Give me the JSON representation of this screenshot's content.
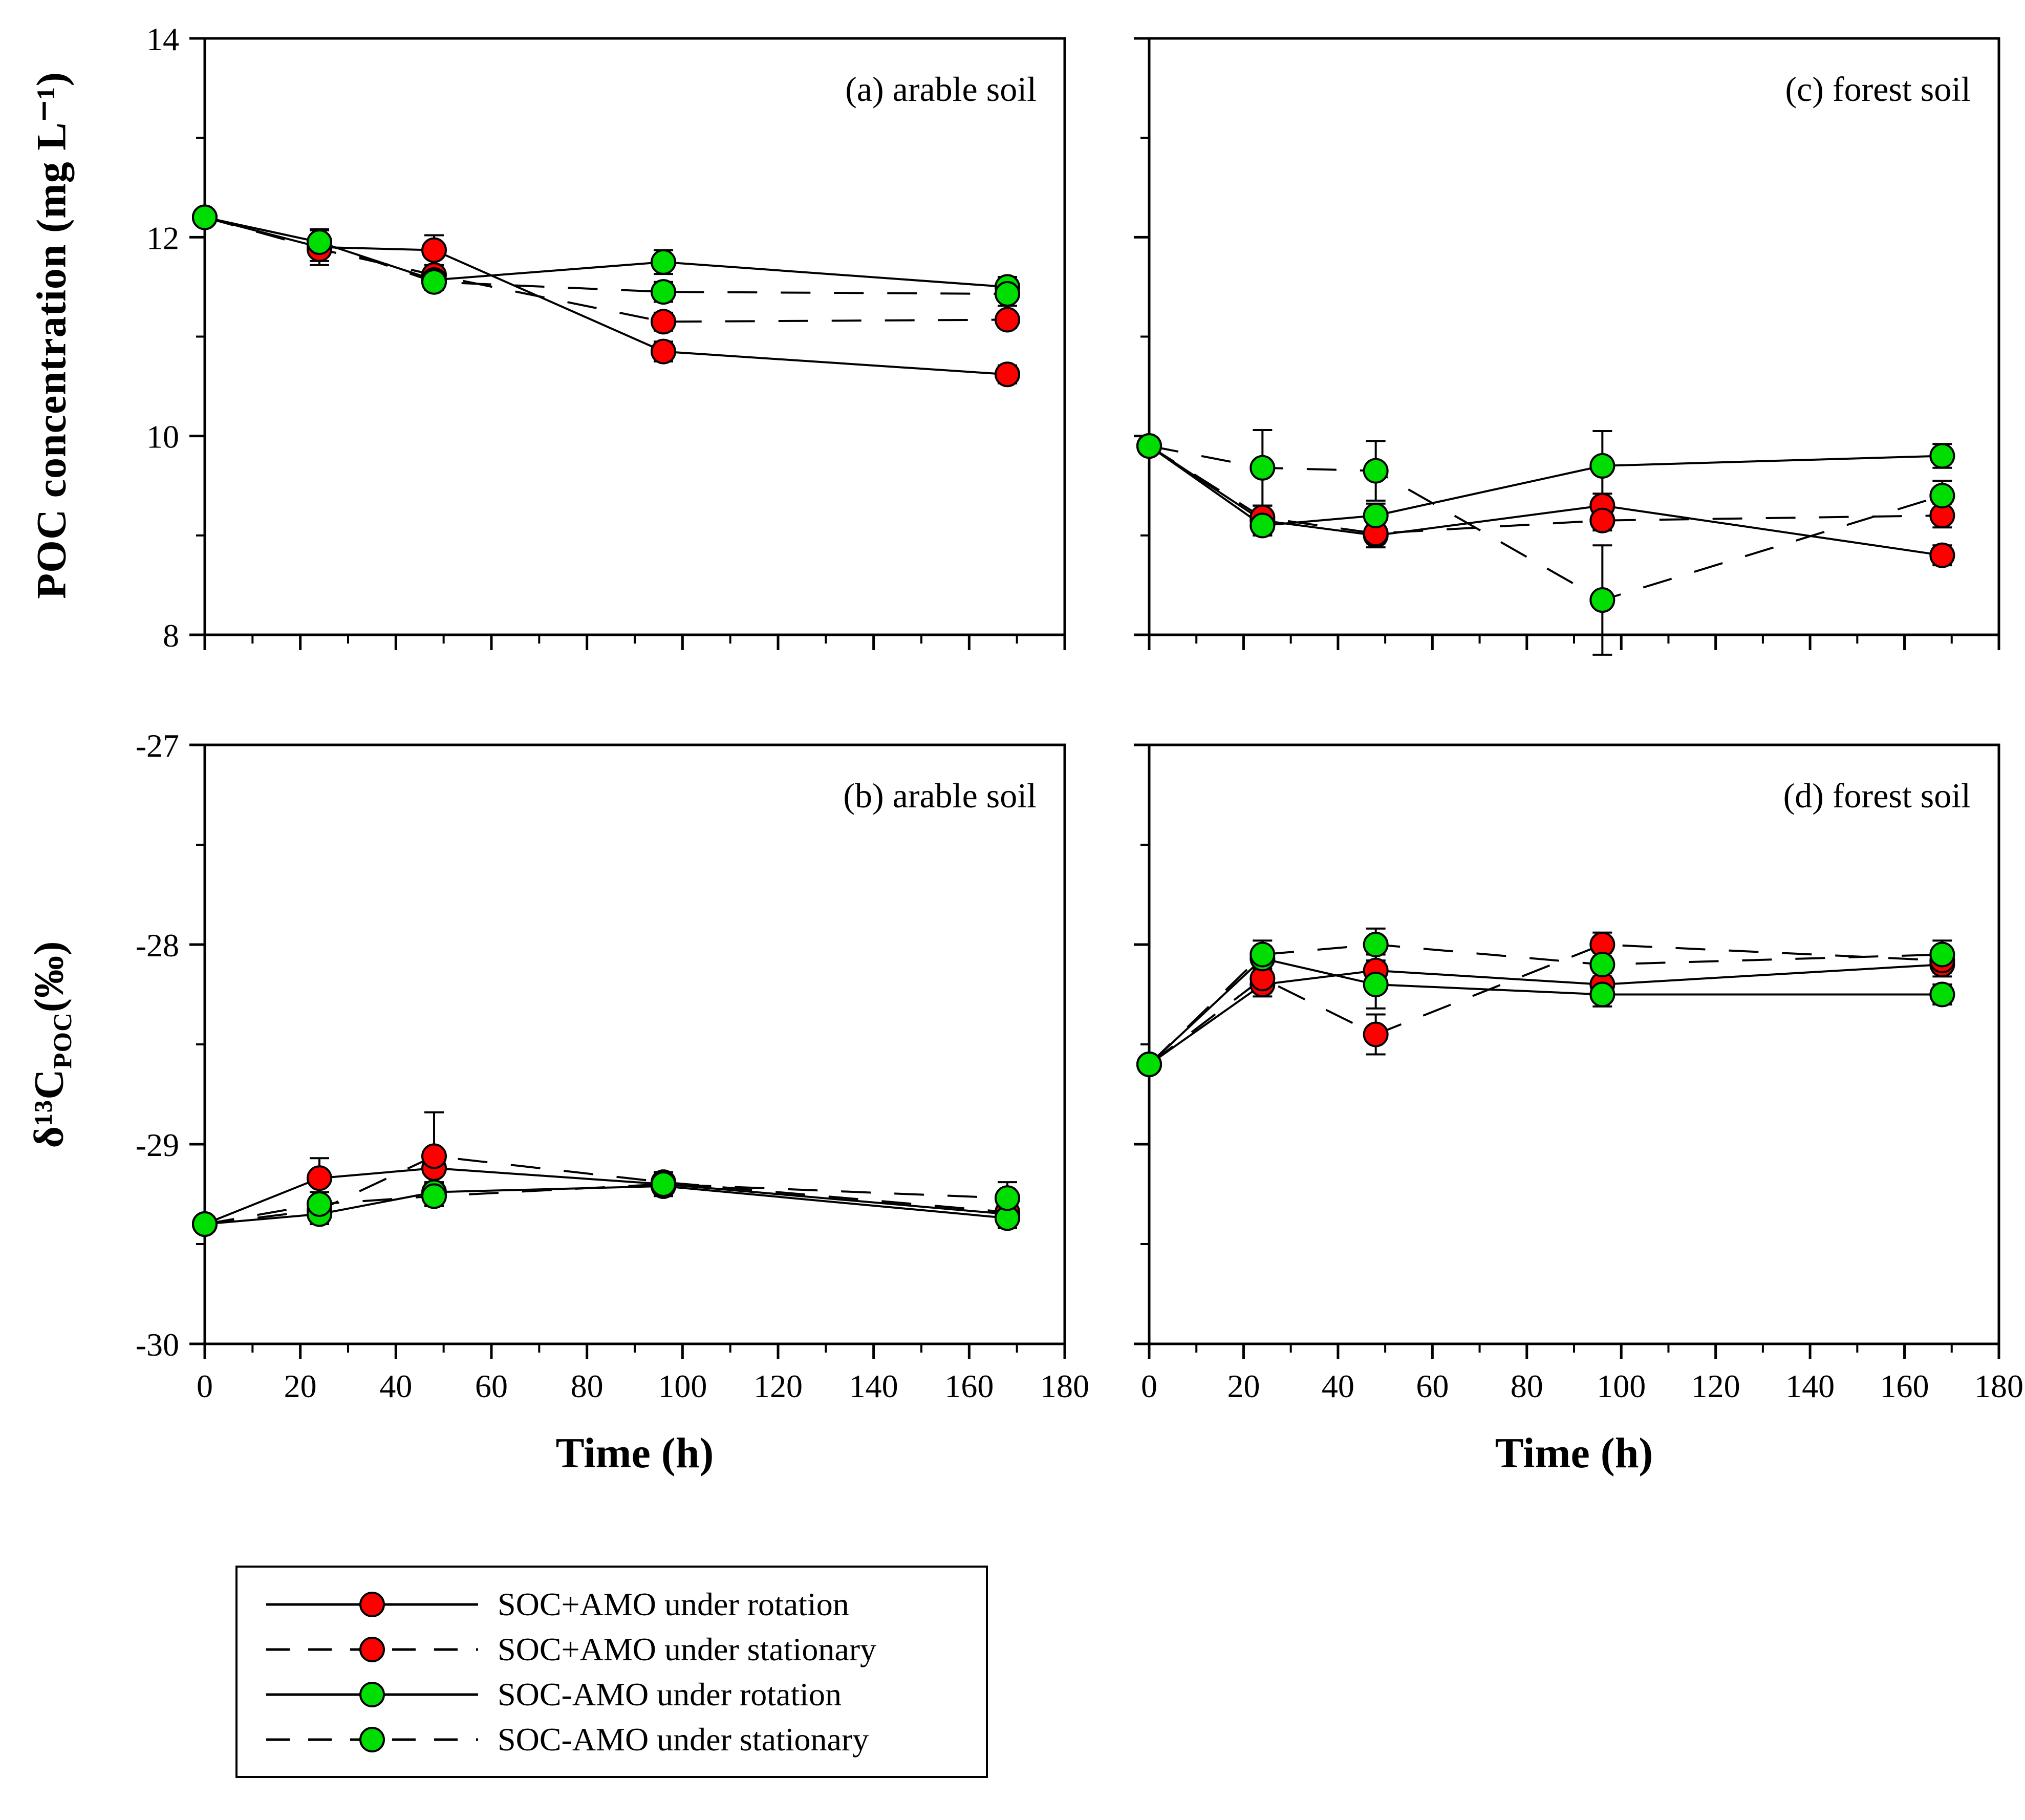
{
  "axes": {
    "poc_label": "POC concentration (mg L⁻¹)",
    "d13c_label": {
      "pre": "δ¹³C",
      "sub": "POC",
      "post": "(‰)"
    },
    "time_label": "Time (h)"
  },
  "colors": {
    "soc_plus_amo": "#ff0000",
    "soc_minus_amo": "#00dd00",
    "line": "#000000"
  },
  "legend": {
    "entries": [
      {
        "label": "SOC+AMO under rotation",
        "color": "#ff0000",
        "dash": "solid"
      },
      {
        "label": "SOC+AMO under stationary",
        "color": "#ff0000",
        "dash": "dashed"
      },
      {
        "label": "SOC-AMO under rotation",
        "color": "#00dd00",
        "dash": "solid"
      },
      {
        "label": "SOC-AMO under stationary",
        "color": "#00dd00",
        "dash": "dashed"
      }
    ]
  },
  "chart_data": [
    {
      "type": "line",
      "panel": "a",
      "title": "(a) arable soil",
      "ylabel": "POC concentration (mg L⁻¹)",
      "xlabel": "Time (h)",
      "xlim": [
        0,
        180
      ],
      "ylim": [
        8,
        14
      ],
      "xticks": [
        0,
        20,
        40,
        60,
        80,
        100,
        120,
        140,
        160,
        180
      ],
      "xminor_step": 10,
      "yticks": [
        8,
        10,
        12,
        14
      ],
      "yminor_step": 1,
      "x": [
        0,
        24,
        48,
        96,
        168
      ],
      "series": [
        {
          "name": "SOC+AMO under rotation",
          "color": "#ff0000",
          "dash": "solid",
          "y": [
            12.2,
            11.9,
            11.87,
            10.85,
            10.62
          ],
          "yerr": [
            0,
            0.18,
            0.15,
            0.1,
            0.09
          ]
        },
        {
          "name": "SOC+AMO under stationary",
          "color": "#ff0000",
          "dash": "dashed",
          "y": [
            12.2,
            11.88,
            11.62,
            11.15,
            11.17
          ],
          "yerr": [
            0,
            0.12,
            0.1,
            0.09,
            0.08
          ]
        },
        {
          "name": "SOC-AMO under rotation",
          "color": "#00dd00",
          "dash": "solid",
          "y": [
            12.2,
            11.95,
            11.57,
            11.75,
            11.5
          ],
          "yerr": [
            0,
            0.12,
            0.08,
            0.12,
            0.1
          ]
        },
        {
          "name": "SOC-AMO under stationary",
          "color": "#00dd00",
          "dash": "dashed",
          "y": [
            12.2,
            11.95,
            11.55,
            11.45,
            11.43
          ],
          "yerr": [
            0,
            0.12,
            0.08,
            0.1,
            0.12
          ]
        }
      ]
    },
    {
      "type": "line",
      "panel": "c",
      "title": "(c) forest soil",
      "ylabel": "POC concentration (mg L⁻¹)",
      "xlabel": "Time (h)",
      "xlim": [
        0,
        180
      ],
      "ylim": [
        8,
        14
      ],
      "xticks": [
        0,
        20,
        40,
        60,
        80,
        100,
        120,
        140,
        160,
        180
      ],
      "xminor_step": 10,
      "yticks": [
        8,
        10,
        12,
        14
      ],
      "yminor_step": 1,
      "x": [
        0,
        24,
        48,
        96,
        168
      ],
      "series": [
        {
          "name": "SOC+AMO under rotation",
          "color": "#ff0000",
          "dash": "solid",
          "y": [
            9.9,
            9.15,
            9.0,
            9.3,
            8.8
          ],
          "yerr": [
            0,
            0.15,
            0.12,
            0.12,
            0.1
          ]
        },
        {
          "name": "SOC+AMO under stationary",
          "color": "#ff0000",
          "dash": "dashed",
          "y": [
            9.9,
            9.18,
            9.02,
            9.15,
            9.2
          ],
          "yerr": [
            0,
            0.12,
            0.1,
            0.1,
            0.12
          ]
        },
        {
          "name": "SOC-AMO under rotation",
          "color": "#00dd00",
          "dash": "solid",
          "y": [
            9.9,
            9.1,
            9.2,
            9.7,
            9.8
          ],
          "yerr": [
            0,
            0.1,
            0.12,
            0.35,
            0.12
          ]
        },
        {
          "name": "SOC-AMO under stationary",
          "color": "#00dd00",
          "dash": "dashed",
          "y": [
            9.9,
            9.68,
            9.65,
            8.35,
            9.4
          ],
          "yerr": [
            0,
            0.38,
            0.3,
            0.55,
            0.15
          ]
        }
      ]
    },
    {
      "type": "line",
      "panel": "b",
      "title": "(b) arable soil",
      "ylabel": "δ13C-POC (‰)",
      "xlabel": "Time (h)",
      "xlim": [
        0,
        180
      ],
      "ylim": [
        -30,
        -27
      ],
      "xticks": [
        0,
        20,
        40,
        60,
        80,
        100,
        120,
        140,
        160,
        180
      ],
      "xminor_step": 10,
      "yticks": [
        -30,
        -29,
        -28,
        -27
      ],
      "yminor_step": 0.5,
      "x": [
        0,
        24,
        48,
        96,
        168
      ],
      "series": [
        {
          "name": "SOC+AMO under rotation",
          "color": "#ff0000",
          "dash": "solid",
          "y": [
            -29.4,
            -29.17,
            -29.12,
            -29.2,
            -29.35
          ],
          "yerr": [
            0,
            0.1,
            0.08,
            0.06,
            0.05
          ]
        },
        {
          "name": "SOC+AMO under stationary",
          "color": "#ff0000",
          "dash": "dashed",
          "y": [
            -29.4,
            -29.33,
            -29.06,
            -29.19,
            -29.34
          ],
          "yerr": [
            0,
            0.05,
            0.22,
            0.05,
            0.08
          ]
        },
        {
          "name": "SOC-AMO under rotation",
          "color": "#00dd00",
          "dash": "solid",
          "y": [
            -29.4,
            -29.35,
            -29.24,
            -29.21,
            -29.37
          ],
          "yerr": [
            0,
            0.05,
            0.05,
            0.04,
            0.05
          ]
        },
        {
          "name": "SOC-AMO under stationary",
          "color": "#00dd00",
          "dash": "dashed",
          "y": [
            -29.4,
            -29.3,
            -29.26,
            -29.2,
            -29.27
          ],
          "yerr": [
            0,
            0.06,
            0.05,
            0.04,
            0.08
          ]
        }
      ]
    },
    {
      "type": "line",
      "panel": "d",
      "title": "(d) forest soil",
      "ylabel": "δ13C-POC (‰)",
      "xlabel": "Time (h)",
      "xlim": [
        0,
        180
      ],
      "ylim": [
        -30,
        -27
      ],
      "xticks": [
        0,
        20,
        40,
        60,
        80,
        100,
        120,
        140,
        160,
        180
      ],
      "xminor_step": 10,
      "yticks": [
        -30,
        -29,
        -28,
        -27
      ],
      "yminor_step": 0.5,
      "x": [
        0,
        24,
        48,
        96,
        168
      ],
      "series": [
        {
          "name": "SOC+AMO under rotation",
          "color": "#ff0000",
          "dash": "solid",
          "y": [
            -28.6,
            -28.2,
            -28.13,
            -28.2,
            -28.1
          ],
          "yerr": [
            0,
            0.06,
            0.08,
            0.06,
            0.06
          ]
        },
        {
          "name": "SOC+AMO under stationary",
          "color": "#ff0000",
          "dash": "dashed",
          "y": [
            -28.6,
            -28.17,
            -28.45,
            -28.0,
            -28.08
          ],
          "yerr": [
            0,
            0.07,
            0.1,
            0.06,
            0.06
          ]
        },
        {
          "name": "SOC-AMO under rotation",
          "color": "#00dd00",
          "dash": "solid",
          "y": [
            -28.6,
            -28.07,
            -28.2,
            -28.25,
            -28.25
          ],
          "yerr": [
            0,
            0.06,
            0.12,
            0.06,
            0.05
          ]
        },
        {
          "name": "SOC-AMO under stationary",
          "color": "#00dd00",
          "dash": "dashed",
          "y": [
            -28.6,
            -28.05,
            -28.0,
            -28.1,
            -28.05
          ],
          "yerr": [
            0,
            0.07,
            0.08,
            0.06,
            0.07
          ]
        }
      ]
    }
  ]
}
